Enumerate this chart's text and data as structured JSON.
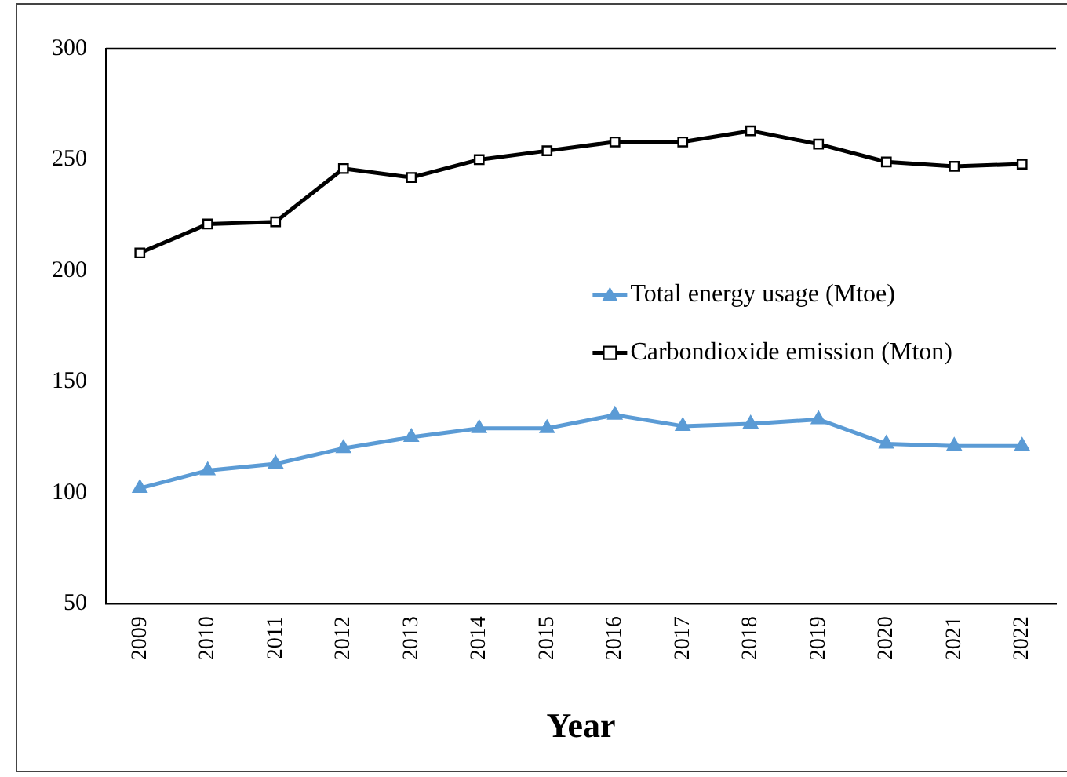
{
  "chart_data": {
    "type": "line",
    "xlabel": "Year",
    "categories": [
      "2009",
      "2010",
      "2011",
      "2012",
      "2013",
      "2014",
      "2015",
      "2016",
      "2017",
      "2018",
      "2019",
      "2020",
      "2021",
      "2022"
    ],
    "series": [
      {
        "name": "Total energy usage (Mtoe)",
        "color": "#5b9bd5",
        "marker": "triangle",
        "values": [
          102,
          110,
          113,
          120,
          125,
          129,
          129,
          135,
          130,
          131,
          133,
          122,
          121,
          121
        ]
      },
      {
        "name": "Carbondioxide emission (Mton)",
        "color": "#000000",
        "marker": "square",
        "values": [
          208,
          221,
          222,
          246,
          242,
          250,
          254,
          258,
          258,
          263,
          257,
          249,
          247,
          248
        ]
      }
    ],
    "ylim": [
      50,
      300
    ],
    "yticks": [
      50,
      100,
      150,
      200,
      250,
      300
    ],
    "grid": false,
    "legend": "right"
  }
}
